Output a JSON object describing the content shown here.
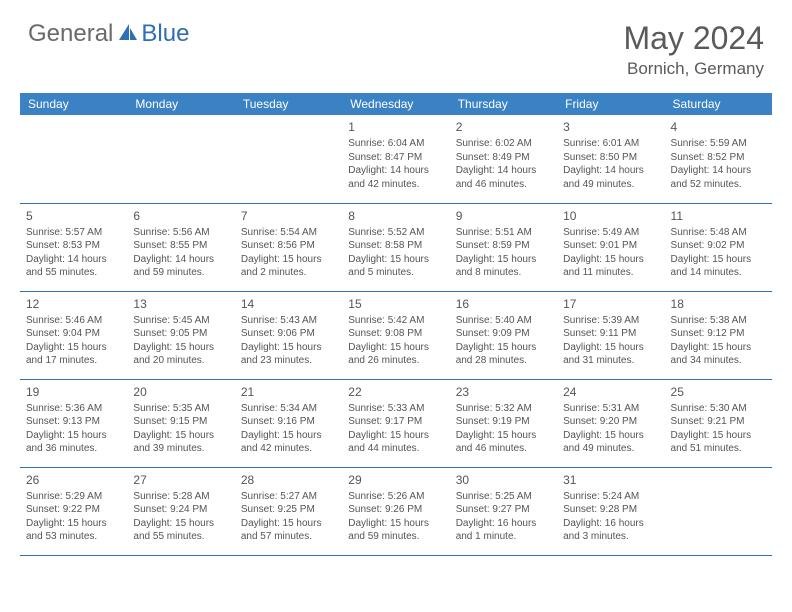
{
  "brand": {
    "part1": "General",
    "part2": "Blue"
  },
  "title": "May 2024",
  "location": "Bornich, Germany",
  "colors": {
    "header_bg": "#3b82c4",
    "header_text": "#ffffff",
    "border": "#2f6fb3",
    "text": "#555555",
    "brand_gray": "#6a6a6a",
    "brand_blue": "#2f6fb3"
  },
  "weekdays": [
    "Sunday",
    "Monday",
    "Tuesday",
    "Wednesday",
    "Thursday",
    "Friday",
    "Saturday"
  ],
  "weeks": [
    [
      {
        "day": "",
        "sunrise": "",
        "sunset": "",
        "daylight": ""
      },
      {
        "day": "",
        "sunrise": "",
        "sunset": "",
        "daylight": ""
      },
      {
        "day": "",
        "sunrise": "",
        "sunset": "",
        "daylight": ""
      },
      {
        "day": "1",
        "sunrise": "Sunrise: 6:04 AM",
        "sunset": "Sunset: 8:47 PM",
        "daylight": "Daylight: 14 hours and 42 minutes."
      },
      {
        "day": "2",
        "sunrise": "Sunrise: 6:02 AM",
        "sunset": "Sunset: 8:49 PM",
        "daylight": "Daylight: 14 hours and 46 minutes."
      },
      {
        "day": "3",
        "sunrise": "Sunrise: 6:01 AM",
        "sunset": "Sunset: 8:50 PM",
        "daylight": "Daylight: 14 hours and 49 minutes."
      },
      {
        "day": "4",
        "sunrise": "Sunrise: 5:59 AM",
        "sunset": "Sunset: 8:52 PM",
        "daylight": "Daylight: 14 hours and 52 minutes."
      }
    ],
    [
      {
        "day": "5",
        "sunrise": "Sunrise: 5:57 AM",
        "sunset": "Sunset: 8:53 PM",
        "daylight": "Daylight: 14 hours and 55 minutes."
      },
      {
        "day": "6",
        "sunrise": "Sunrise: 5:56 AM",
        "sunset": "Sunset: 8:55 PM",
        "daylight": "Daylight: 14 hours and 59 minutes."
      },
      {
        "day": "7",
        "sunrise": "Sunrise: 5:54 AM",
        "sunset": "Sunset: 8:56 PM",
        "daylight": "Daylight: 15 hours and 2 minutes."
      },
      {
        "day": "8",
        "sunrise": "Sunrise: 5:52 AM",
        "sunset": "Sunset: 8:58 PM",
        "daylight": "Daylight: 15 hours and 5 minutes."
      },
      {
        "day": "9",
        "sunrise": "Sunrise: 5:51 AM",
        "sunset": "Sunset: 8:59 PM",
        "daylight": "Daylight: 15 hours and 8 minutes."
      },
      {
        "day": "10",
        "sunrise": "Sunrise: 5:49 AM",
        "sunset": "Sunset: 9:01 PM",
        "daylight": "Daylight: 15 hours and 11 minutes."
      },
      {
        "day": "11",
        "sunrise": "Sunrise: 5:48 AM",
        "sunset": "Sunset: 9:02 PM",
        "daylight": "Daylight: 15 hours and 14 minutes."
      }
    ],
    [
      {
        "day": "12",
        "sunrise": "Sunrise: 5:46 AM",
        "sunset": "Sunset: 9:04 PM",
        "daylight": "Daylight: 15 hours and 17 minutes."
      },
      {
        "day": "13",
        "sunrise": "Sunrise: 5:45 AM",
        "sunset": "Sunset: 9:05 PM",
        "daylight": "Daylight: 15 hours and 20 minutes."
      },
      {
        "day": "14",
        "sunrise": "Sunrise: 5:43 AM",
        "sunset": "Sunset: 9:06 PM",
        "daylight": "Daylight: 15 hours and 23 minutes."
      },
      {
        "day": "15",
        "sunrise": "Sunrise: 5:42 AM",
        "sunset": "Sunset: 9:08 PM",
        "daylight": "Daylight: 15 hours and 26 minutes."
      },
      {
        "day": "16",
        "sunrise": "Sunrise: 5:40 AM",
        "sunset": "Sunset: 9:09 PM",
        "daylight": "Daylight: 15 hours and 28 minutes."
      },
      {
        "day": "17",
        "sunrise": "Sunrise: 5:39 AM",
        "sunset": "Sunset: 9:11 PM",
        "daylight": "Daylight: 15 hours and 31 minutes."
      },
      {
        "day": "18",
        "sunrise": "Sunrise: 5:38 AM",
        "sunset": "Sunset: 9:12 PM",
        "daylight": "Daylight: 15 hours and 34 minutes."
      }
    ],
    [
      {
        "day": "19",
        "sunrise": "Sunrise: 5:36 AM",
        "sunset": "Sunset: 9:13 PM",
        "daylight": "Daylight: 15 hours and 36 minutes."
      },
      {
        "day": "20",
        "sunrise": "Sunrise: 5:35 AM",
        "sunset": "Sunset: 9:15 PM",
        "daylight": "Daylight: 15 hours and 39 minutes."
      },
      {
        "day": "21",
        "sunrise": "Sunrise: 5:34 AM",
        "sunset": "Sunset: 9:16 PM",
        "daylight": "Daylight: 15 hours and 42 minutes."
      },
      {
        "day": "22",
        "sunrise": "Sunrise: 5:33 AM",
        "sunset": "Sunset: 9:17 PM",
        "daylight": "Daylight: 15 hours and 44 minutes."
      },
      {
        "day": "23",
        "sunrise": "Sunrise: 5:32 AM",
        "sunset": "Sunset: 9:19 PM",
        "daylight": "Daylight: 15 hours and 46 minutes."
      },
      {
        "day": "24",
        "sunrise": "Sunrise: 5:31 AM",
        "sunset": "Sunset: 9:20 PM",
        "daylight": "Daylight: 15 hours and 49 minutes."
      },
      {
        "day": "25",
        "sunrise": "Sunrise: 5:30 AM",
        "sunset": "Sunset: 9:21 PM",
        "daylight": "Daylight: 15 hours and 51 minutes."
      }
    ],
    [
      {
        "day": "26",
        "sunrise": "Sunrise: 5:29 AM",
        "sunset": "Sunset: 9:22 PM",
        "daylight": "Daylight: 15 hours and 53 minutes."
      },
      {
        "day": "27",
        "sunrise": "Sunrise: 5:28 AM",
        "sunset": "Sunset: 9:24 PM",
        "daylight": "Daylight: 15 hours and 55 minutes."
      },
      {
        "day": "28",
        "sunrise": "Sunrise: 5:27 AM",
        "sunset": "Sunset: 9:25 PM",
        "daylight": "Daylight: 15 hours and 57 minutes."
      },
      {
        "day": "29",
        "sunrise": "Sunrise: 5:26 AM",
        "sunset": "Sunset: 9:26 PM",
        "daylight": "Daylight: 15 hours and 59 minutes."
      },
      {
        "day": "30",
        "sunrise": "Sunrise: 5:25 AM",
        "sunset": "Sunset: 9:27 PM",
        "daylight": "Daylight: 16 hours and 1 minute."
      },
      {
        "day": "31",
        "sunrise": "Sunrise: 5:24 AM",
        "sunset": "Sunset: 9:28 PM",
        "daylight": "Daylight: 16 hours and 3 minutes."
      },
      {
        "day": "",
        "sunrise": "",
        "sunset": "",
        "daylight": ""
      }
    ]
  ]
}
